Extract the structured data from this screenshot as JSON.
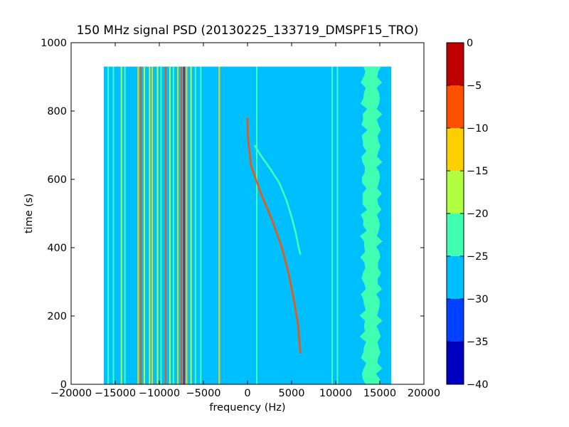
{
  "chart_data": {
    "type": "heatmap",
    "title": "150 MHz signal PSD (20130225_133719_DMSPF15_TRO)",
    "xlabel": "frequency (Hz)",
    "ylabel": "time (s)",
    "xlim": [
      -20000,
      20000
    ],
    "ylim": [
      0,
      1000
    ],
    "x_ticks": [
      -20000,
      -15000,
      -10000,
      -5000,
      0,
      5000,
      10000,
      15000,
      20000
    ],
    "x_tick_labels": [
      "−20000",
      "−15000",
      "−10000",
      "−5000",
      "0",
      "5000",
      "10000",
      "15000",
      "20000"
    ],
    "y_ticks": [
      0,
      200,
      400,
      600,
      800,
      1000
    ],
    "y_tick_labels": [
      "0",
      "200",
      "400",
      "600",
      "800",
      "1000"
    ],
    "data_extent": {
      "x": [
        -16300,
        16300
      ],
      "y": [
        0,
        930
      ]
    },
    "background_level": -27.5,
    "colorbar": {
      "range": [
        -40,
        0
      ],
      "ticks": [
        0,
        -5,
        -10,
        -15,
        -20,
        -25,
        -30,
        -35,
        -40
      ],
      "tick_labels": [
        "0",
        "−5",
        "−10",
        "−15",
        "−20",
        "−25",
        "−30",
        "−35",
        "−40"
      ],
      "bins": [
        {
          "min": -40,
          "max": -35,
          "color": "#0000bf"
        },
        {
          "min": -35,
          "max": -30,
          "color": "#0040ff"
        },
        {
          "min": -30,
          "max": -25,
          "color": "#00bfff"
        },
        {
          "min": -25,
          "max": -20,
          "color": "#40ffb0"
        },
        {
          "min": -20,
          "max": -15,
          "color": "#b0ff40"
        },
        {
          "min": -15,
          "max": -10,
          "color": "#ffd000"
        },
        {
          "min": -10,
          "max": -5,
          "color": "#ff5000"
        },
        {
          "min": -5,
          "max": 0,
          "color": "#bf0000"
        }
      ]
    },
    "vertical_lines": [
      {
        "freq": -15800,
        "level": -22
      },
      {
        "freq": -15200,
        "level": -22
      },
      {
        "freq": -14300,
        "level": -17
      },
      {
        "freq": -13900,
        "level": -22
      },
      {
        "freq": -12400,
        "level": -12
      },
      {
        "freq": -12100,
        "level": -7
      },
      {
        "freq": -11700,
        "level": -17
      },
      {
        "freq": -11100,
        "level": -17
      },
      {
        "freq": -10800,
        "level": -12
      },
      {
        "freq": -10200,
        "level": -17
      },
      {
        "freq": -9800,
        "level": -22
      },
      {
        "freq": -9300,
        "level": -7
      },
      {
        "freq": -8800,
        "level": -17
      },
      {
        "freq": -8400,
        "level": -22
      },
      {
        "freq": -7900,
        "level": -12
      },
      {
        "freq": -7500,
        "level": -7
      },
      {
        "freq": -7200,
        "level": -2
      },
      {
        "freq": -6900,
        "level": -12
      },
      {
        "freq": -6400,
        "level": -17
      },
      {
        "freq": -5900,
        "level": -22
      },
      {
        "freq": -5300,
        "level": -22
      },
      {
        "freq": -3200,
        "level": -12
      },
      {
        "freq": 1050,
        "level": -22
      },
      {
        "freq": 9600,
        "level": -22
      },
      {
        "freq": 10200,
        "level": -22
      }
    ],
    "series": [
      {
        "points": [
          [
            0,
            780
          ],
          [
            50,
            720
          ],
          [
            400,
            640
          ],
          [
            1500,
            560
          ],
          [
            2800,
            480
          ],
          [
            3900,
            400
          ],
          [
            4700,
            320
          ],
          [
            5300,
            240
          ],
          [
            5700,
            180
          ],
          [
            5900,
            120
          ],
          [
            6000,
            90
          ]
        ],
        "level": -7
      },
      {
        "points": [
          [
            800,
            700
          ],
          [
            1500,
            670
          ],
          [
            2600,
            630
          ],
          [
            3600,
            590
          ],
          [
            4400,
            540
          ],
          [
            5000,
            490
          ],
          [
            5500,
            440
          ],
          [
            5800,
            400
          ],
          [
            6000,
            380
          ]
        ],
        "level": -22
      }
    ],
    "noise_band": {
      "freq_min": 12900,
      "freq_max": 15700,
      "level": -22
    }
  }
}
